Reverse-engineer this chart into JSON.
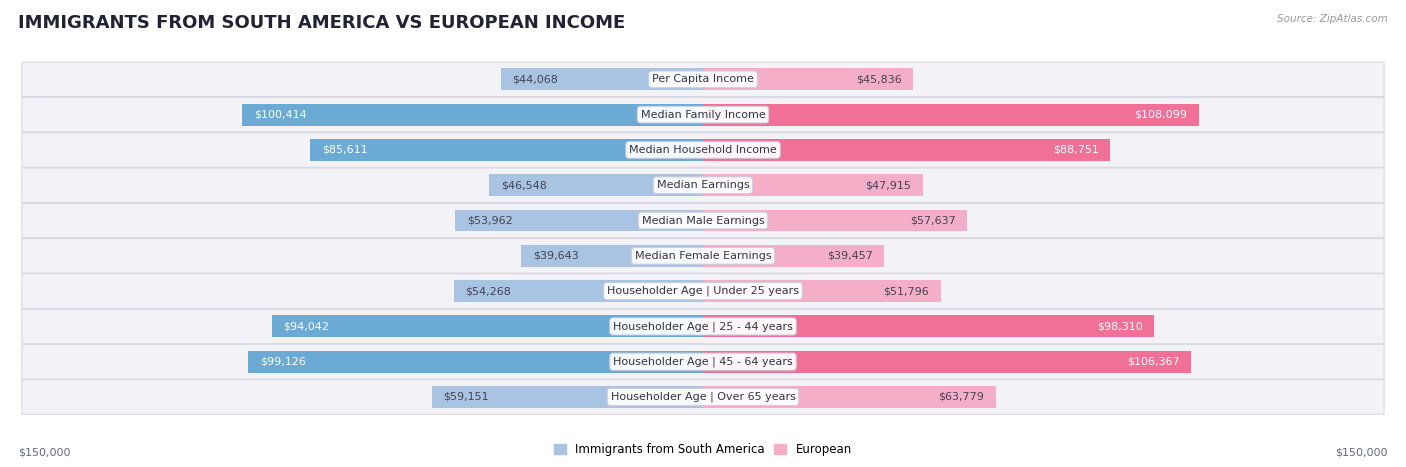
{
  "title": "IMMIGRANTS FROM SOUTH AMERICA VS EUROPEAN INCOME",
  "source": "Source: ZipAtlas.com",
  "categories": [
    "Per Capita Income",
    "Median Family Income",
    "Median Household Income",
    "Median Earnings",
    "Median Male Earnings",
    "Median Female Earnings",
    "Householder Age | Under 25 years",
    "Householder Age | 25 - 44 years",
    "Householder Age | 45 - 64 years",
    "Householder Age | Over 65 years"
  ],
  "south_america_values": [
    44068,
    100414,
    85611,
    46548,
    53962,
    39643,
    54268,
    94042,
    99126,
    59151
  ],
  "european_values": [
    45836,
    108099,
    88751,
    47915,
    57637,
    39457,
    51796,
    98310,
    106367,
    63779
  ],
  "sa_normal_color": "#a8c4e2",
  "sa_strong_color": "#6aaad4",
  "eu_normal_color": "#f5aec8",
  "eu_strong_color": "#f07098",
  "south_america_label": "Immigrants from South America",
  "european_label": "European",
  "max_value": 150000,
  "axis_label_left": "$150,000",
  "axis_label_right": "$150,000",
  "background_color": "#ffffff",
  "row_bg_even": "#f0f0f5",
  "row_bg_odd": "#f8f8fc",
  "title_fontsize": 13,
  "cat_fontsize": 8.0,
  "value_fontsize": 8.0,
  "bar_height": 0.62,
  "sa_strong_rows": [
    1,
    2,
    7,
    8
  ],
  "eu_strong_rows": [
    1,
    2,
    7,
    8
  ]
}
